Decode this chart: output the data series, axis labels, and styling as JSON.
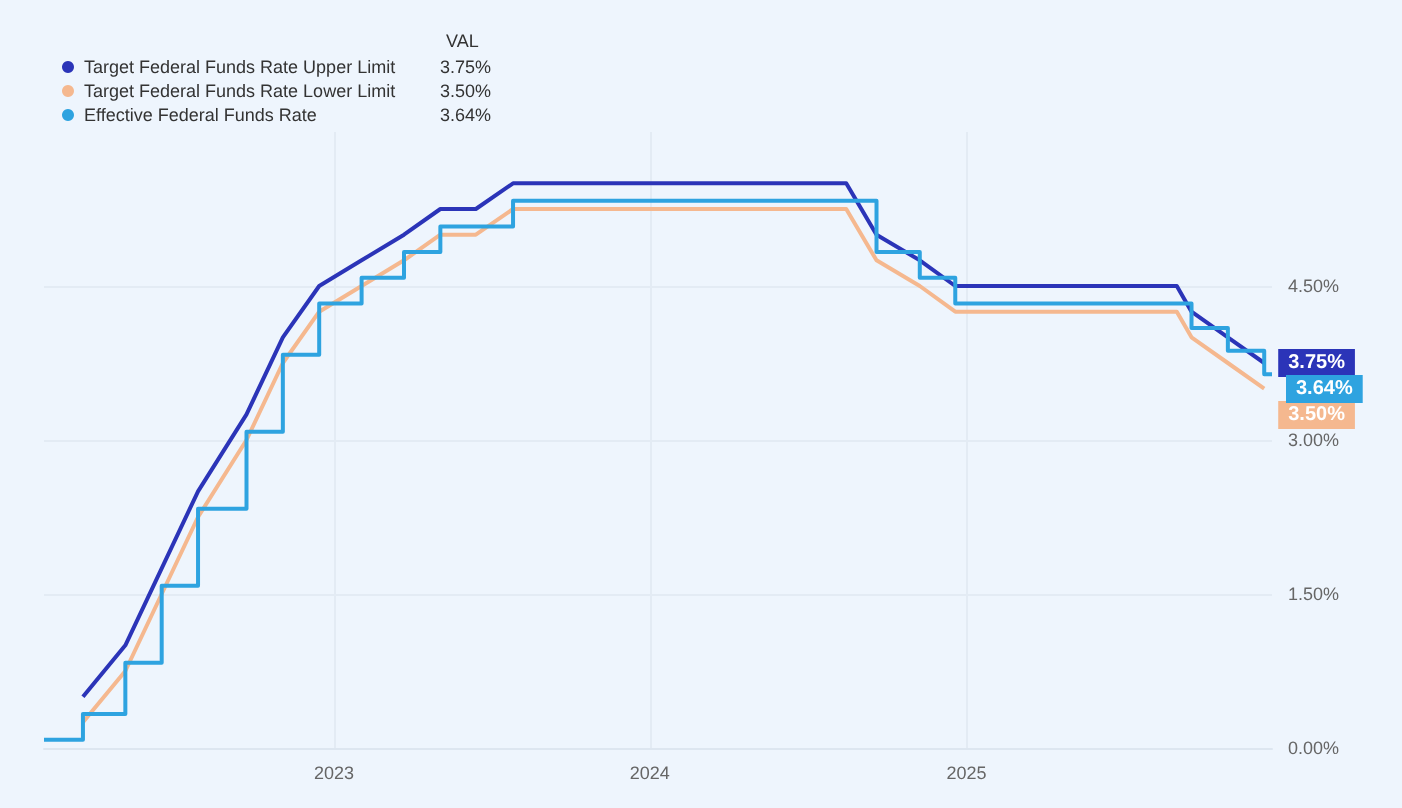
{
  "chart_data": {
    "type": "line",
    "legend_title": "VAL",
    "legend": "top left",
    "grid": true,
    "marker": "none",
    "xlim": [
      "2022-01-31",
      "2025-12-20"
    ],
    "xticks": [
      "2023",
      "2024",
      "2025"
    ],
    "ylim": [
      0,
      6
    ],
    "yticks": [
      {
        "value": 0,
        "label": "0.00%"
      },
      {
        "value": 1.5,
        "label": "1.50%"
      },
      {
        "value": 3,
        "label": "3.00%"
      },
      {
        "value": 4.5,
        "label": "4.50%"
      }
    ],
    "series": [
      {
        "name": "Target Federal Funds Rate Upper Limit",
        "color": "#2b34b8",
        "x": [
          "2022-03-17",
          "2022-05-05",
          "2022-06-16",
          "2022-07-28",
          "2022-09-22",
          "2022-11-03",
          "2022-12-15",
          "2023-02-02",
          "2023-03-23",
          "2023-05-04",
          "2023-06-14",
          "2023-07-27",
          "2024-08-15",
          "2024-09-19",
          "2024-11-08",
          "2024-12-19",
          "2025-09-01",
          "2025-09-18",
          "2025-10-30",
          "2025-12-11"
        ],
        "values": [
          0.5,
          1.0,
          1.75,
          2.5,
          3.25,
          4.0,
          4.5,
          4.75,
          5.0,
          5.25,
          5.25,
          5.5,
          5.5,
          5.0,
          4.75,
          4.5,
          4.5,
          4.25,
          4.0,
          3.75
        ],
        "value_labels": [
          null,
          null,
          null,
          null,
          null,
          null,
          null,
          null,
          null,
          null,
          null,
          null,
          null,
          null,
          null,
          null,
          null,
          null,
          null,
          "3.75%"
        ]
      },
      {
        "name": "Target Federal Funds Rate Lower Limit",
        "color": "#f5b88f",
        "x": [
          "2022-03-17",
          "2022-05-05",
          "2022-06-16",
          "2022-07-28",
          "2022-09-22",
          "2022-11-03",
          "2022-12-15",
          "2023-02-02",
          "2023-03-23",
          "2023-05-04",
          "2023-06-14",
          "2023-07-27",
          "2024-08-15",
          "2024-09-19",
          "2024-11-08",
          "2024-12-19",
          "2025-09-01",
          "2025-09-18",
          "2025-10-30",
          "2025-12-11"
        ],
        "values": [
          0.25,
          0.75,
          1.5,
          2.25,
          3.0,
          3.75,
          4.25,
          4.5,
          4.75,
          5.0,
          5.0,
          5.25,
          5.25,
          4.75,
          4.5,
          4.25,
          4.25,
          4.0,
          3.75,
          3.5
        ],
        "value_labels": [
          null,
          null,
          null,
          null,
          null,
          null,
          null,
          null,
          null,
          null,
          null,
          null,
          null,
          null,
          null,
          null,
          null,
          null,
          null,
          "3.50%"
        ]
      },
      {
        "name": "Effective Federal Funds Rate",
        "type": "step",
        "color": "#2ea3e0",
        "x": [
          "2022-01-31",
          "2022-03-17",
          "2022-05-05",
          "2022-06-16",
          "2022-07-28",
          "2022-09-22",
          "2022-11-03",
          "2022-12-15",
          "2023-02-02",
          "2023-03-23",
          "2023-05-04",
          "2023-07-27",
          "2024-09-19",
          "2024-11-08",
          "2024-12-19",
          "2025-09-18",
          "2025-10-30",
          "2025-12-11",
          "2025-12-20"
        ],
        "values": [
          0.08,
          0.33,
          0.83,
          1.58,
          2.33,
          3.08,
          3.83,
          4.33,
          4.58,
          4.83,
          5.08,
          5.33,
          4.83,
          4.58,
          4.33,
          4.09,
          3.87,
          3.64,
          3.64
        ],
        "value_labels": [
          null,
          null,
          null,
          null,
          null,
          null,
          null,
          null,
          null,
          null,
          null,
          null,
          null,
          null,
          null,
          null,
          null,
          null,
          "3.64%"
        ]
      }
    ]
  }
}
